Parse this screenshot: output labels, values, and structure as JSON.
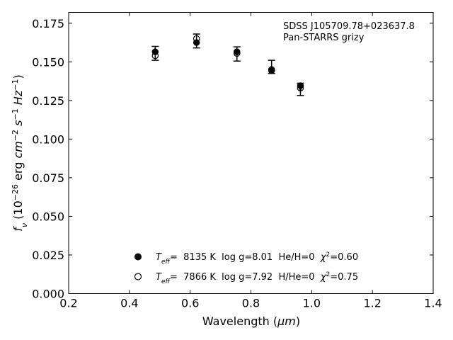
{
  "chart_data": {
    "type": "scatter",
    "xlabel_parts": [
      "Wavelength (",
      "μm",
      ")"
    ],
    "ylabel_parts": [
      "f",
      "ν",
      " (10",
      "−26",
      " erg ",
      "cm",
      "−2",
      " ",
      "s",
      "−1",
      " ",
      "Hz",
      "−1",
      ")"
    ],
    "xlim": [
      0.2,
      1.4
    ],
    "ylim": [
      0.0,
      0.182
    ],
    "xticks": [
      0.2,
      0.4,
      0.6,
      0.8,
      1.0,
      1.2,
      1.4
    ],
    "xtick_labels": [
      "0.2",
      "0.4",
      "0.6",
      "0.8",
      "1.0",
      "1.2",
      "1.4"
    ],
    "yticks": [
      0.0,
      0.025,
      0.05,
      0.075,
      0.1,
      0.125,
      0.15,
      0.175
    ],
    "ytick_labels": [
      "0.000",
      "0.025",
      "0.050",
      "0.075",
      "0.100",
      "0.125",
      "0.150",
      "0.175"
    ],
    "grid": false,
    "annotations": [
      "SDSS J105709.78+023637.8",
      "Pan-STARRS grizy"
    ],
    "observed": {
      "x": [
        0.485,
        0.621,
        0.754,
        0.868,
        0.963
      ],
      "y": [
        0.1555,
        0.1633,
        0.155,
        0.1463,
        0.1322
      ],
      "yerr_low": [
        0.151,
        0.159,
        0.1505,
        0.1425,
        0.1282
      ],
      "yerr_high": [
        0.16,
        0.168,
        0.1597,
        0.151,
        0.1362
      ]
    },
    "series": [
      {
        "marker": "filled-circle",
        "x": [
          0.485,
          0.621,
          0.754,
          0.868,
          0.963
        ],
        "y": [
          0.1565,
          0.1625,
          0.1565,
          0.1443,
          0.1345
        ],
        "legend_parts": [
          "T",
          "eff",
          "=  8135 K  log g=8.01  He/H=0  ",
          "χ",
          "2",
          "=0.60"
        ]
      },
      {
        "marker": "open-circle",
        "x": [
          0.485,
          0.621,
          0.754,
          0.868,
          0.963
        ],
        "y": [
          0.154,
          0.165,
          0.1555,
          0.145,
          0.133
        ],
        "legend_parts": [
          "T",
          "eff",
          "=  7866 K  log g=7.92  H/He=0  ",
          "χ",
          "2",
          "=0.75"
        ]
      }
    ],
    "legend_position": "lower-center"
  }
}
